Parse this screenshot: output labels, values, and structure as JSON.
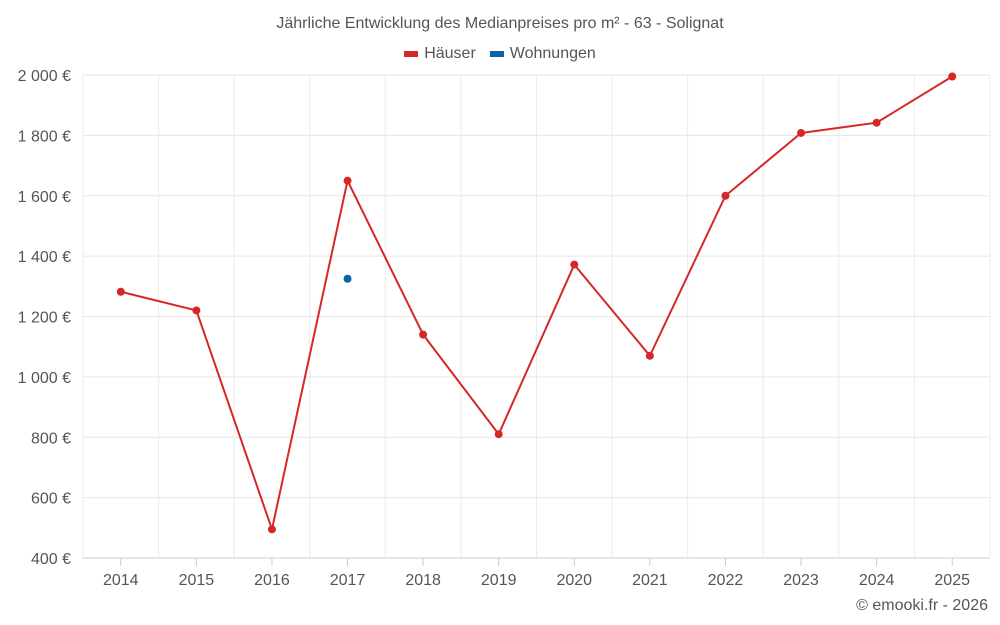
{
  "chart_data": {
    "type": "line",
    "title": "Jährliche Entwicklung des Medianpreises pro m² - 63 - Solignat",
    "xlabel": "",
    "ylabel": "",
    "categories": [
      "2014",
      "2015",
      "2016",
      "2017",
      "2018",
      "2019",
      "2020",
      "2021",
      "2022",
      "2023",
      "2024",
      "2025"
    ],
    "ylim": [
      400,
      2000
    ],
    "yticks": [
      400,
      600,
      800,
      1000,
      1200,
      1400,
      1600,
      1800,
      2000
    ],
    "ytick_labels": [
      "400 €",
      "600 €",
      "800 €",
      "1 000 €",
      "1 200 €",
      "1 400 €",
      "1 600 €",
      "1 800 €",
      "2 000 €"
    ],
    "grid": true,
    "legend_position": "top-center",
    "series": [
      {
        "name": "Häuser",
        "color": "#d62728",
        "values": [
          1282,
          1220,
          495,
          1650,
          1140,
          810,
          1372,
          1070,
          1600,
          1808,
          1842,
          1995
        ]
      },
      {
        "name": "Wohnungen",
        "color": "#0a64a4",
        "values": [
          null,
          null,
          null,
          1325,
          null,
          null,
          null,
          null,
          null,
          null,
          null,
          null
        ]
      }
    ]
  },
  "footer": {
    "credit": "© emooki.fr - 2026"
  }
}
